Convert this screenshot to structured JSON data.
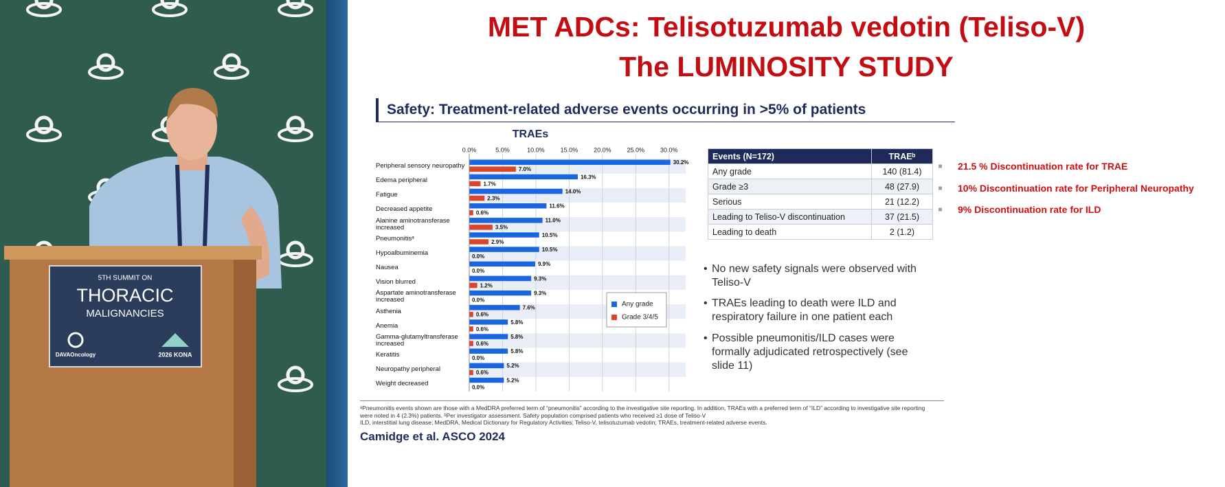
{
  "speaker_panel": {
    "podium_sign": {
      "edition": "5TH SUMMIT ON",
      "line1": "THORACIC",
      "line2": "MALIGNANCIES",
      "organizer": "DAVAOncology",
      "event": "2026 KONA"
    }
  },
  "slide": {
    "title_line1": "MET ADCs: Telisotuzumab vedotin (Teliso-V)",
    "title_line2": "The LUMINOSITY STUDY",
    "section_heading": "Safety: Treatment-related adverse events occurring in >5% of patients",
    "notes": [
      "21.5 % Discontinuation rate for TRAE",
      "10% Discontinuation rate for Peripheral Neuropathy",
      "9% Discontinuation rate for ILD"
    ],
    "bullets": [
      "No new safety signals were observed with Teliso-V",
      "TRAEs leading to death were ILD and respiratory failure in one patient each",
      "Possible pneumonitis/ILD cases were formally adjudicated retrospectively (see slide 11)"
    ],
    "footnote": [
      "ᵃPneumonitis events shown are those with a MedDRA preferred term of “pneumonitis” according to the investigative site reporting. In addition, TRAEs with a preferred term of “ILD” according to investigative site reporting were noted in 4 (2.3%) patients. ᵇPer investigator assessment. Safety population comprised patients who received ≥1 dose of Teliso-V",
      "ILD, interstitial lung disease; MedDRA, Medical Dictionary for Regulatory Activities; Teliso-V, telisotuzumab vedotin; TRAEs, treatment-related adverse events."
    ],
    "citation": "Camidge et al.  ASCO 2024"
  },
  "table": {
    "header": [
      "Events (N=172)",
      "TRAEᵇ"
    ],
    "rows": [
      [
        "Any grade",
        "140 (81.4)"
      ],
      [
        "Grade ≥3",
        "48 (27.9)"
      ],
      [
        "Serious",
        "21 (12.2)"
      ],
      [
        "Leading to Teliso-V discontinuation",
        "37 (21.5)"
      ],
      [
        "Leading to death",
        "2 (1.2)"
      ]
    ]
  },
  "chart_data": {
    "type": "hbar",
    "title": "TRAEs",
    "categories": [
      "Peripheral sensory neuropathy",
      "Edema peripheral",
      "Fatigue",
      "Decreased appetite",
      "Alanine aminotransferase increased",
      "Pneumonitisᵃ",
      "Hypoalbuminemia",
      "Nausea",
      "Vision blurred",
      "Aspartate aminotransferase increased",
      "Asthenia",
      "Anemia",
      "Gamma-glutamyltransferase increased",
      "Keratitis",
      "Neuropathy peripheral",
      "Weight decreased"
    ],
    "series": [
      {
        "name": "Any grade",
        "color": "#1a66e0",
        "values": [
          30.2,
          16.3,
          14.0,
          11.6,
          11.0,
          10.5,
          10.5,
          9.9,
          9.3,
          9.3,
          7.6,
          5.8,
          5.8,
          5.8,
          5.2,
          5.2
        ],
        "value_labels": [
          "30.2%",
          "16.3%",
          "14.0%",
          "11.6%",
          "11.0%",
          "10.5%",
          "10.5%",
          "9.9%",
          "9.3%",
          "9.3%",
          "7.6%",
          "5.8%",
          "5.8%",
          "5.8%",
          "5.2%",
          "5.2%"
        ]
      },
      {
        "name": "Grade 3/4/5",
        "color": "#d9462b",
        "values": [
          7.0,
          1.7,
          2.3,
          0.6,
          3.5,
          2.9,
          0.0,
          0.0,
          1.2,
          0.0,
          0.6,
          0.6,
          0.6,
          0.0,
          0.6,
          0.0
        ],
        "value_labels": [
          "7.0%",
          "1.7%",
          "2.3%",
          "0.6%",
          "3.5%",
          "2.9%",
          "0.0%",
          "0.0%",
          "1.2%",
          "0.0%",
          "0.6%",
          "0.6%",
          "0.6%",
          "0.0%",
          "0.6%",
          "0.0%"
        ]
      }
    ],
    "xlim": [
      0,
      32.5
    ],
    "xticks": [
      {
        "value": 0,
        "label": "0.0%"
      },
      {
        "value": 5,
        "label": "5.0%"
      },
      {
        "value": 10,
        "label": "10.0%"
      },
      {
        "value": 15,
        "label": "15.0%"
      },
      {
        "value": 20,
        "label": "20.0%"
      },
      {
        "value": 25,
        "label": "25.0%"
      },
      {
        "value": 30,
        "label": "30.0%"
      }
    ],
    "grid": true,
    "legend": "right"
  }
}
